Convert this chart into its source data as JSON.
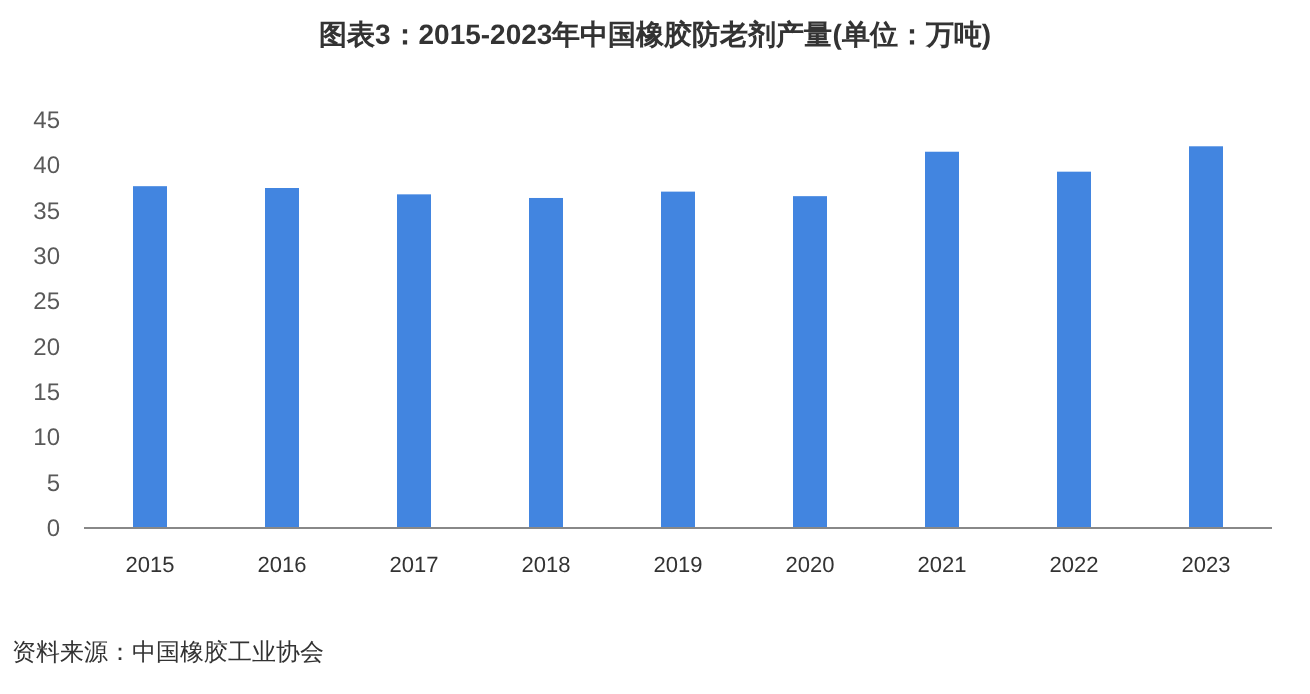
{
  "chart_data": {
    "type": "bar",
    "title": "图表3：2015-2023年中国橡胶防老剂产量(单位：万吨)",
    "categories": [
      "2015",
      "2016",
      "2017",
      "2018",
      "2019",
      "2020",
      "2021",
      "2022",
      "2023"
    ],
    "values": [
      37.7,
      37.5,
      36.8,
      36.4,
      37.1,
      36.6,
      41.5,
      39.3,
      42.1
    ],
    "color": "#4285e0",
    "ylim": [
      0,
      45
    ],
    "yticks": [
      0,
      5,
      10,
      15,
      20,
      25,
      30,
      35,
      40,
      45
    ],
    "grid": false,
    "annotations": [
      "资料来源：中国橡胶工业协会"
    ]
  }
}
